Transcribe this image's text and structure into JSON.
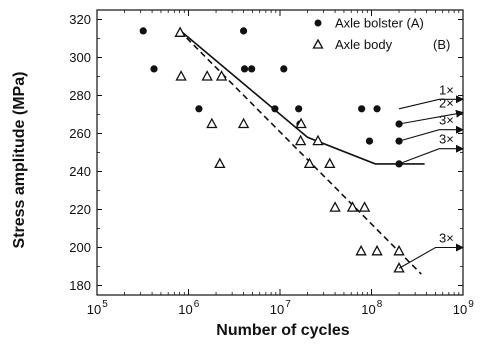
{
  "chart_data": {
    "type": "scatter",
    "xlabel": "Number of cycles",
    "ylabel": "Stress amplitude (MPa)",
    "x_scale": "log",
    "xlim": [
      100000,
      1000000000
    ],
    "ylim": [
      175,
      325
    ],
    "x_ticks": [
      {
        "value": 100000,
        "base": "10",
        "exp": "5"
      },
      {
        "value": 1000000,
        "base": "10",
        "exp": "6"
      },
      {
        "value": 10000000,
        "base": "10",
        "exp": "7"
      },
      {
        "value": 100000000,
        "base": "10",
        "exp": "8"
      },
      {
        "value": 1000000000,
        "base": "10",
        "exp": "9"
      }
    ],
    "y_ticks": [
      180,
      200,
      220,
      240,
      260,
      280,
      300,
      320
    ],
    "grid": false,
    "legend_position": "top-right",
    "series": [
      {
        "name": "Axle bolster (A)",
        "marker": "filled-circle",
        "points": [
          {
            "x": 320000,
            "y": 314
          },
          {
            "x": 420000,
            "y": 294
          },
          {
            "x": 1300000,
            "y": 273
          },
          {
            "x": 4000000,
            "y": 314
          },
          {
            "x": 4100000,
            "y": 294
          },
          {
            "x": 4900000,
            "y": 294
          },
          {
            "x": 8800000,
            "y": 273
          },
          {
            "x": 11000000,
            "y": 294
          },
          {
            "x": 16000000,
            "y": 273
          },
          {
            "x": 16500000,
            "y": 265
          },
          {
            "x": 78000000,
            "y": 273
          },
          {
            "x": 115000000,
            "y": 273
          },
          {
            "x": 95000000,
            "y": 256
          },
          {
            "x": 200000000,
            "y": 265
          },
          {
            "x": 200000000,
            "y": 256
          },
          {
            "x": 200000000,
            "y": 244
          }
        ]
      },
      {
        "name": "Axle body",
        "marker": "open-triangle",
        "points": [
          {
            "x": 810000,
            "y": 313
          },
          {
            "x": 830000,
            "y": 290
          },
          {
            "x": 1600000,
            "y": 290
          },
          {
            "x": 1800000,
            "y": 265
          },
          {
            "x": 2300000,
            "y": 290
          },
          {
            "x": 2200000,
            "y": 244
          },
          {
            "x": 4000000,
            "y": 265
          },
          {
            "x": 17000000,
            "y": 265
          },
          {
            "x": 16800000,
            "y": 256
          },
          {
            "x": 21000000,
            "y": 244
          },
          {
            "x": 26000000,
            "y": 256
          },
          {
            "x": 35000000,
            "y": 244
          },
          {
            "x": 40000000,
            "y": 221
          },
          {
            "x": 62000000,
            "y": 221
          },
          {
            "x": 84000000,
            "y": 221
          },
          {
            "x": 77000000,
            "y": 198
          },
          {
            "x": 115000000,
            "y": 198
          },
          {
            "x": 200000000,
            "y": 198
          },
          {
            "x": 200000000,
            "y": 189
          }
        ]
      }
    ],
    "fit_lines": [
      {
        "series": "Axle bolster (A)",
        "style": "solid",
        "points": [
          {
            "x": 820000,
            "y": 314
          },
          {
            "x": 20000000,
            "y": 258
          },
          {
            "x": 110000000,
            "y": 244
          },
          {
            "x": 380000000,
            "y": 244
          }
        ]
      },
      {
        "series": "Axle body",
        "style": "dashed",
        "points": [
          {
            "x": 800000,
            "y": 314
          },
          {
            "x": 350000000,
            "y": 186
          }
        ]
      }
    ],
    "runout_annotations": [
      {
        "label": "1×",
        "from": {
          "x": 200000000,
          "y": 273
        },
        "elbow": {
          "x": 550000000,
          "y": 278
        },
        "end": {
          "x": 1000000000,
          "y": 278
        }
      },
      {
        "label": "2×",
        "from": {
          "x": 200000000,
          "y": 265
        },
        "elbow": null,
        "end": {
          "x": 1000000000,
          "y": 271
        }
      },
      {
        "label": "3×",
        "from": {
          "x": 200000000,
          "y": 256
        },
        "elbow": {
          "x": 550000000,
          "y": 262
        },
        "end": {
          "x": 1000000000,
          "y": 262
        }
      },
      {
        "label": "3×",
        "from": {
          "x": 200000000,
          "y": 244
        },
        "elbow": {
          "x": 550000000,
          "y": 252
        },
        "end": {
          "x": 1000000000,
          "y": 252
        }
      },
      {
        "label": "3×",
        "from": {
          "x": 200000000,
          "y": 189
        },
        "elbow": {
          "x": 500000000,
          "y": 200
        },
        "end": {
          "x": 1000000000,
          "y": 200
        }
      }
    ]
  }
}
